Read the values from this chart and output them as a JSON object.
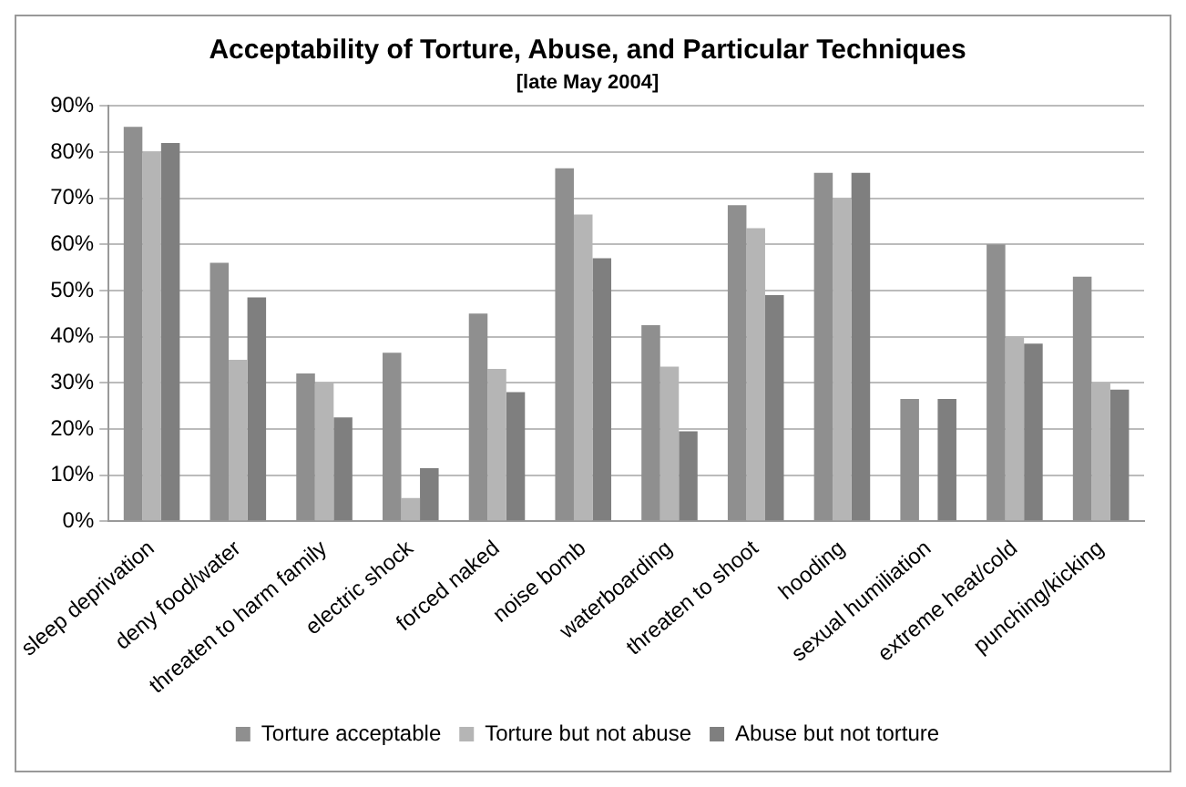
{
  "chart_data": {
    "type": "bar",
    "title": "Acceptability of Torture, Abuse, and Particular Techniques",
    "subtitle": "[late May 2004]",
    "categories": [
      "sleep deprivation",
      "deny food/water",
      "threaten to harm family",
      "electric shock",
      "forced naked",
      "noise bomb",
      "waterboarding",
      "threaten to shoot",
      "hooding",
      "sexual humiliation",
      "extreme heat/cold",
      "punching/kicking"
    ],
    "series": [
      {
        "name": "Torture acceptable",
        "color": "#8f8f8f",
        "values": [
          85.5,
          56,
          32,
          36.5,
          45,
          76.5,
          42.5,
          68.5,
          75.5,
          26.5,
          60,
          53
        ]
      },
      {
        "name": "Torture but not abuse",
        "color": "#b5b5b5",
        "values": [
          80,
          35,
          30,
          5,
          33,
          66.5,
          33.5,
          63.5,
          70,
          null,
          40,
          30
        ]
      },
      {
        "name": "Abuse but not torture",
        "color": "#7f7f7f",
        "values": [
          82,
          48.5,
          22.5,
          11.5,
          28,
          57,
          19.5,
          49,
          75.5,
          26.5,
          38.5,
          28.5
        ]
      }
    ],
    "ylim": [
      0,
      90
    ],
    "yticks": [
      {
        "value": 0,
        "label": "0%"
      },
      {
        "value": 10,
        "label": "10%"
      },
      {
        "value": 20,
        "label": "20%"
      },
      {
        "value": 30,
        "label": "30%"
      },
      {
        "value": 40,
        "label": "40%"
      },
      {
        "value": 50,
        "label": "50%"
      },
      {
        "value": 60,
        "label": "60%"
      },
      {
        "value": 70,
        "label": "70%"
      },
      {
        "value": 80,
        "label": "80%"
      },
      {
        "value": 90,
        "label": "90%"
      }
    ],
    "grid": "y",
    "legend": "bottom"
  }
}
